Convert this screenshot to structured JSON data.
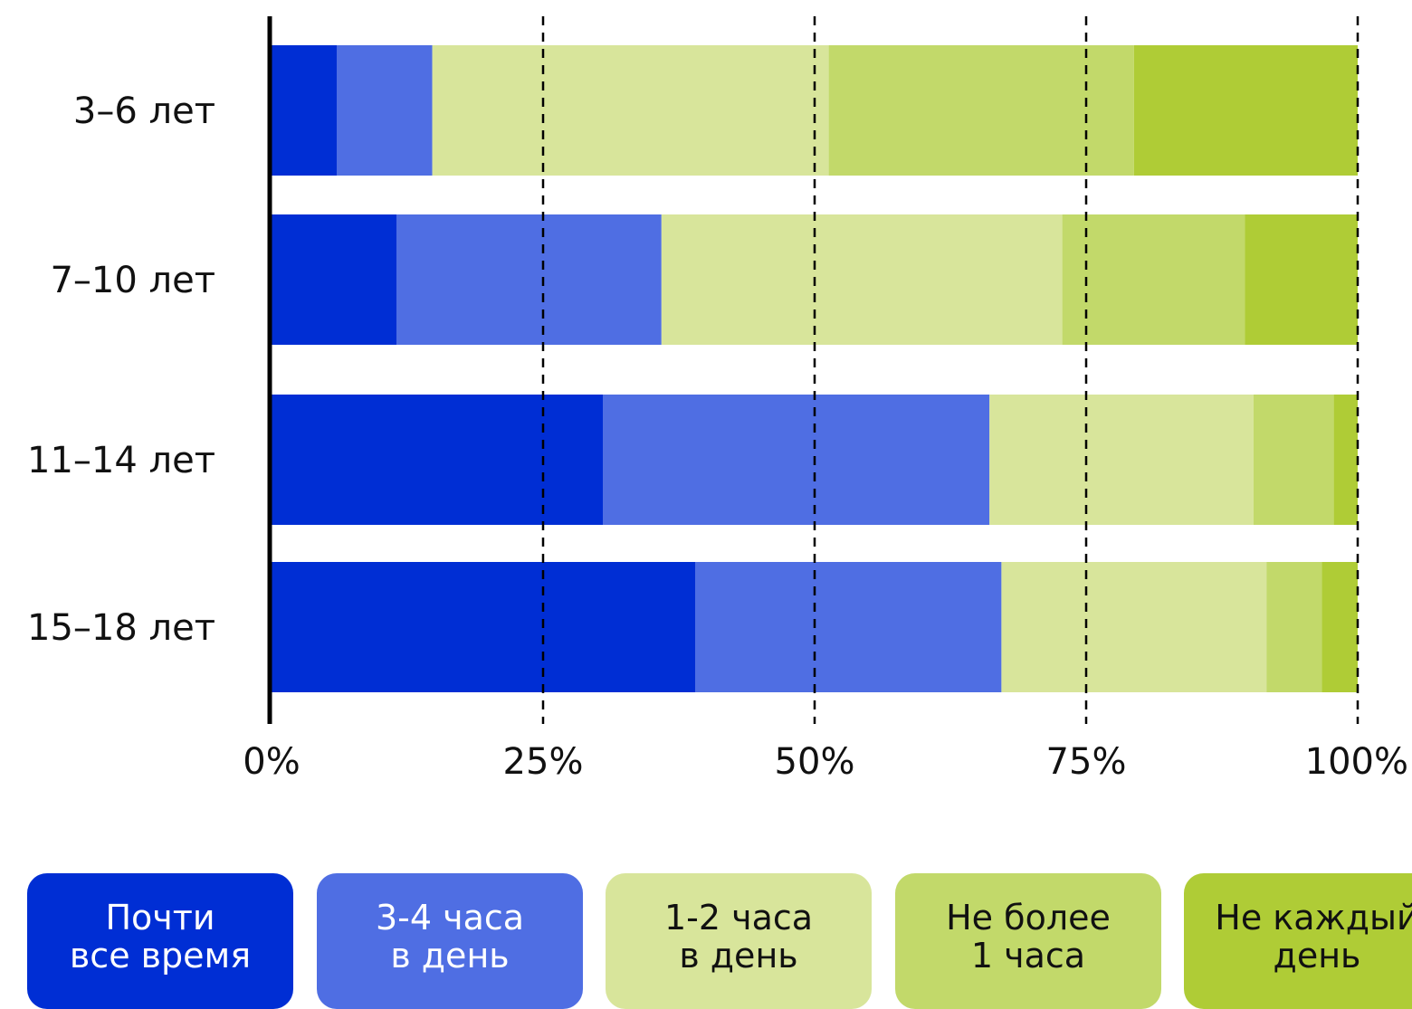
{
  "chart_data": {
    "type": "bar",
    "orientation": "horizontal",
    "stacked": "percent",
    "categories": [
      "3–6 лет",
      "7–10 лет",
      "11–14 лет",
      "15–18 лет"
    ],
    "x_ticks": [
      "0%",
      "25%",
      "50%",
      "75%",
      "100%"
    ],
    "xlim": [
      0,
      100
    ],
    "grid": "dashed vertical at 25% intervals",
    "legend_position": "bottom",
    "series": [
      {
        "name": "Почти все время",
        "label_line1": "Почти",
        "label_line2": "все время",
        "color": "#002ed4",
        "text_color": "#ffffff",
        "values": [
          6,
          11.5,
          30.5,
          39
        ]
      },
      {
        "name": "3-4 часа в день",
        "label_line1": "3-4 часа",
        "label_line2": "в день",
        "color": "#4f6ee3",
        "text_color": "#ffffff",
        "values": [
          8.8,
          24.4,
          35.6,
          28.2
        ]
      },
      {
        "name": "1-2 часа в день",
        "label_line1": "1-2 часа",
        "label_line2": "в день",
        "color": "#d8e59b",
        "text_color": "#111111",
        "values": [
          36.5,
          36.9,
          24.3,
          24.4
        ]
      },
      {
        "name": "Не более 1 часа",
        "label_line1": "Не более",
        "label_line2": "1 часа",
        "color": "#c2d96a",
        "text_color": "#111111",
        "values": [
          28.1,
          16.8,
          7.4,
          5.1
        ]
      },
      {
        "name": "Не каждый день",
        "label_line1": "Не каждый",
        "label_line2": "день",
        "color": "#afcc36",
        "text_color": "#111111",
        "values": [
          20.6,
          10.4,
          2.2,
          3.3
        ]
      }
    ]
  }
}
